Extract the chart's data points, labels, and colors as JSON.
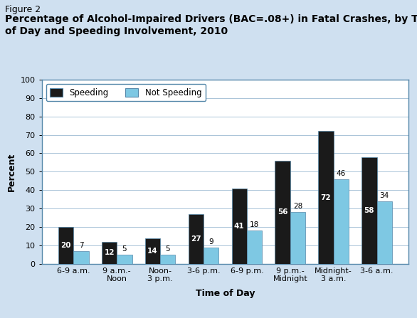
{
  "figure_label": "Figure 2",
  "title_line1": "Percentage of Alcohol-Impaired Drivers (BAC=.08+) in Fatal Crashes, by Time",
  "title_line2": "of Day and Speeding Involvement, 2010",
  "categories": [
    "6-9 a.m.",
    "9 a.m.-\nNoon",
    "Noon-\n3 p.m.",
    "3-6 p.m.",
    "6-9 p.m.",
    "9 p.m.-\nMidnight",
    "Midnight-\n3 a.m.",
    "3-6 a.m."
  ],
  "speeding": [
    20,
    12,
    14,
    27,
    41,
    56,
    72,
    58
  ],
  "not_speeding": [
    7,
    5,
    5,
    9,
    18,
    28,
    46,
    34
  ],
  "speeding_color": "#1a1a1a",
  "not_speeding_color": "#7ec8e3",
  "ylabel": "Percent",
  "xlabel": "Time of Day",
  "ylim": [
    0,
    100
  ],
  "yticks": [
    0,
    10,
    20,
    30,
    40,
    50,
    60,
    70,
    80,
    90,
    100
  ],
  "legend_speeding": "Speeding",
  "legend_not_speeding": "Not Speeding",
  "background_outer": "#cfe0f0",
  "background_inner": "#ffffff",
  "border_color": "#5588aa",
  "grid_color": "#aac4d8",
  "title_fontsize": 10,
  "figure_label_fontsize": 9,
  "label_fontsize": 9,
  "tick_fontsize": 8,
  "bar_value_fontsize": 7.5,
  "legend_fontsize": 8.5,
  "bar_width": 0.35
}
